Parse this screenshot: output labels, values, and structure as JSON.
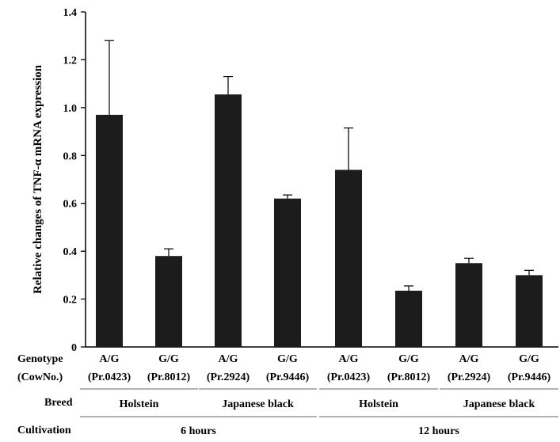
{
  "chart_data": {
    "type": "bar",
    "ylabel": "Relative changes of TNF-α mRNA expression",
    "ylim": [
      0,
      1.4
    ],
    "yticks": [
      "0",
      "0.2",
      "0.4",
      "0.6",
      "0.8",
      "1.0",
      "1.2",
      "1.4"
    ],
    "grid": false,
    "bar_color": "#1c1c1c",
    "bars": [
      {
        "genotype": "A/G",
        "cow": "(Pr.0423)",
        "value": 0.97,
        "error": 0.31
      },
      {
        "genotype": "G/G",
        "cow": "(Pr.8012)",
        "value": 0.38,
        "error": 0.03
      },
      {
        "genotype": "A/G",
        "cow": "(Pr.2924)",
        "value": 1.055,
        "error": 0.075
      },
      {
        "genotype": "G/G",
        "cow": "(Pr.9446)",
        "value": 0.62,
        "error": 0.015
      },
      {
        "genotype": "A/G",
        "cow": "(Pr.0423)",
        "value": 0.74,
        "error": 0.175
      },
      {
        "genotype": "G/G",
        "cow": "(Pr.8012)",
        "value": 0.235,
        "error": 0.02
      },
      {
        "genotype": "A/G",
        "cow": "(Pr.2924)",
        "value": 0.35,
        "error": 0.02
      },
      {
        "genotype": "G/G",
        "cow": "(Pr.9446)",
        "value": 0.3,
        "error": 0.02
      }
    ],
    "row_labels": {
      "genotype": "Genotype",
      "cow": "(CowNo.)",
      "breed": "Breed",
      "cultivation": "Cultivation"
    },
    "breeds": [
      {
        "label": "Holstein",
        "from": 0,
        "to": 1
      },
      {
        "label": "Japanese black",
        "from": 2,
        "to": 3
      },
      {
        "label": "Holstein",
        "from": 4,
        "to": 5
      },
      {
        "label": "Japanese black",
        "from": 6,
        "to": 7
      }
    ],
    "cultivation": [
      {
        "label": "6 hours",
        "from": 0,
        "to": 3
      },
      {
        "label": "12 hours",
        "from": 4,
        "to": 7
      }
    ]
  }
}
